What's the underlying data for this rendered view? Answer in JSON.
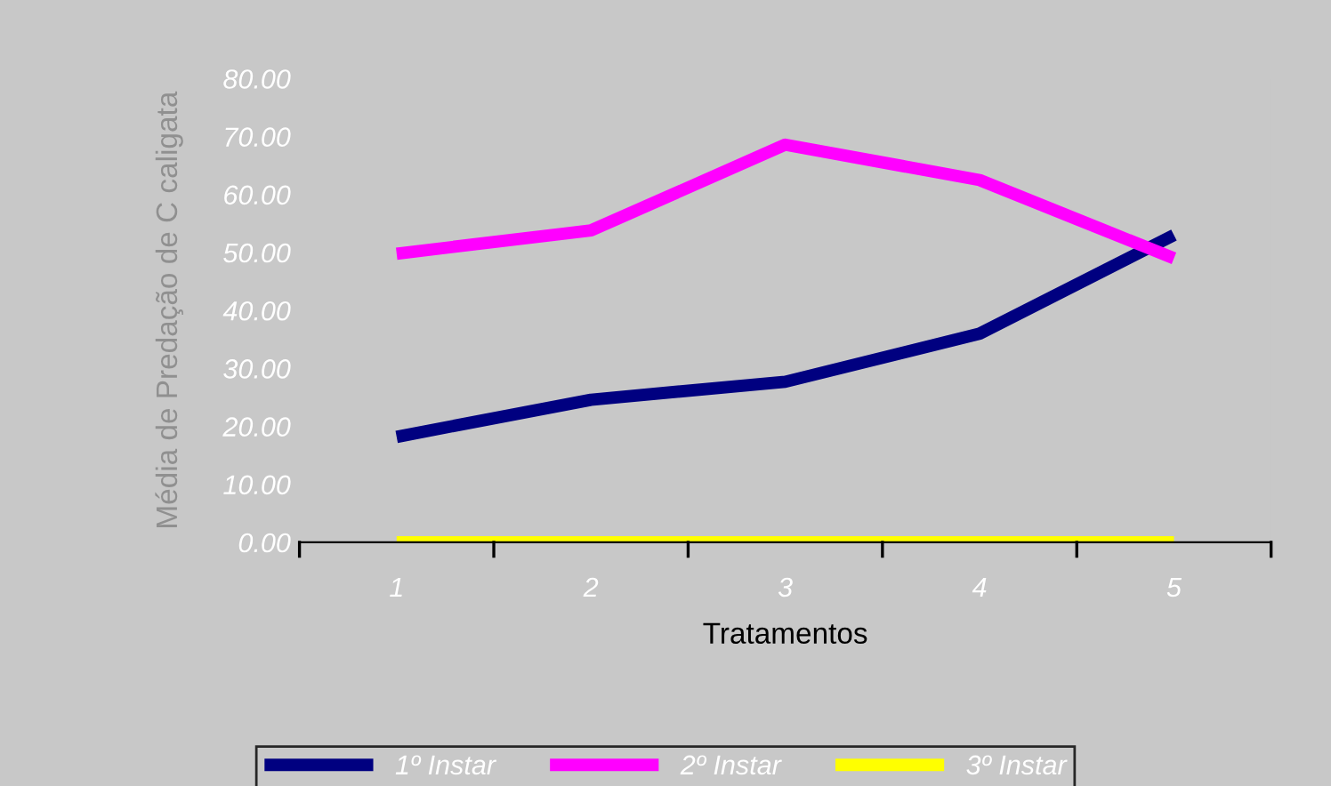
{
  "chart_data": {
    "type": "line",
    "xlabel": "Tratamentos",
    "ylabel": "Média de Predação de C caligata",
    "categories": [
      "1",
      "2",
      "3",
      "4",
      "5"
    ],
    "series": [
      {
        "name": "1º Instar",
        "color": "#000080",
        "values": [
          18.2,
          24.6,
          27.7,
          36,
          53
        ]
      },
      {
        "name": "2º Instar",
        "color": "#ff00ff",
        "values": [
          49.8,
          53.8,
          68.6,
          62.5,
          49
        ]
      },
      {
        "name": "3º Instar",
        "color": "#ffff00",
        "values": [
          0,
          0,
          0,
          0,
          0
        ]
      }
    ],
    "ylim": [
      0,
      80
    ],
    "yticks": [
      {
        "value": 0,
        "label": "0.00"
      },
      {
        "value": 10,
        "label": "10.00"
      },
      {
        "value": 20,
        "label": "20.00"
      },
      {
        "value": 30,
        "label": "30.00"
      },
      {
        "value": 40,
        "label": "40.00"
      },
      {
        "value": 50,
        "label": "50.00"
      },
      {
        "value": 60,
        "label": "60.00"
      },
      {
        "value": 70,
        "label": "70.00"
      },
      {
        "value": 80,
        "label": "80.00"
      }
    ],
    "grid": false,
    "legend": "bottom",
    "marker": "none",
    "line_style": "solid"
  }
}
